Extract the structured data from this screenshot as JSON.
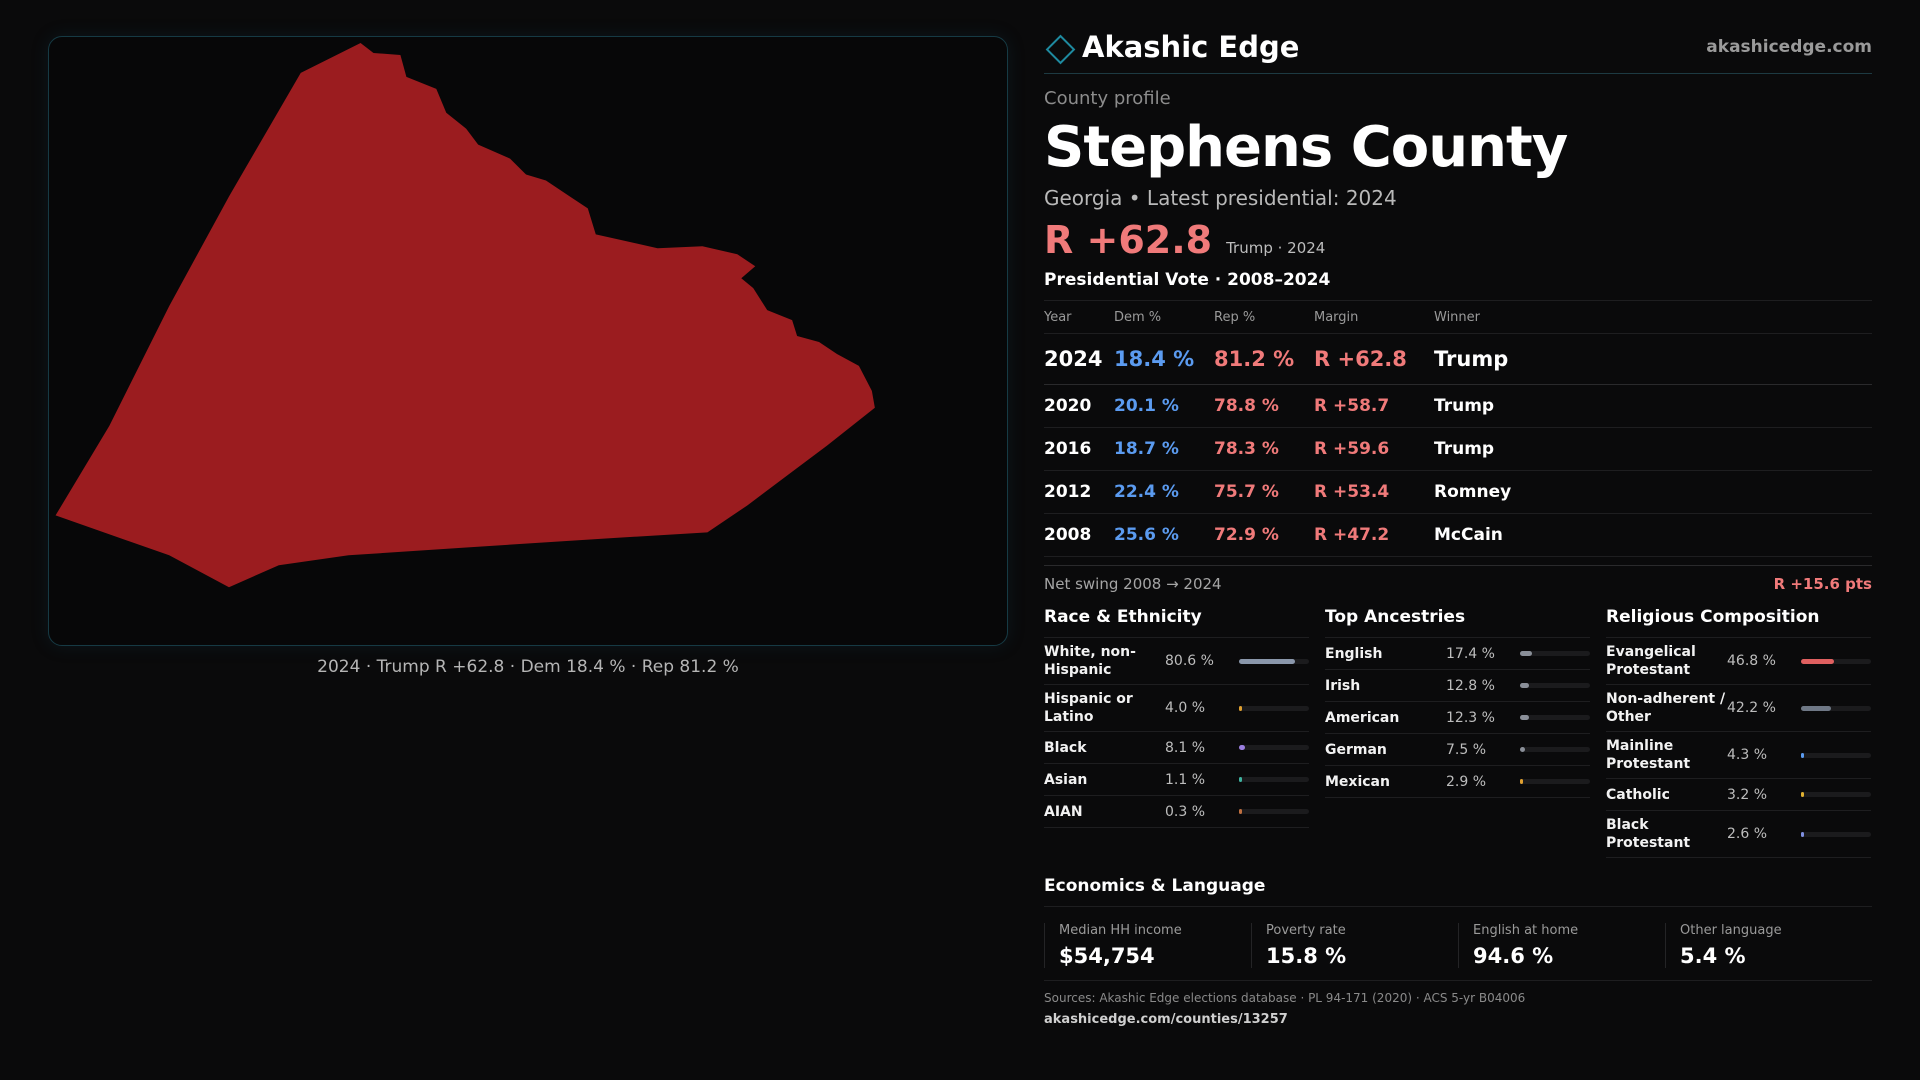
{
  "map": {
    "caption": "2024 · Trump R +62.8 · Dem 18.4 % · Rep 81.2 %",
    "fill_color": "#9b1c1f"
  },
  "brand": {
    "name": "Akashic Edge",
    "url": "akashicedge.com",
    "logo_icon": "diamond-outline-icon"
  },
  "profile": {
    "eyebrow": "County profile",
    "title": "Stephens County",
    "subline": "Georgia • Latest presidential: 2024",
    "margin": "R +62.8",
    "margin_note": "Trump · 2024"
  },
  "votes": {
    "heading": "Presidential Vote · 2008–2024",
    "columns": [
      "Year",
      "Dem %",
      "Rep %",
      "Margin",
      "Winner"
    ],
    "rows": [
      {
        "year": "2024",
        "dem": "18.4 %",
        "rep": "81.2 %",
        "margin": "R +62.8",
        "winner": "Trump"
      },
      {
        "year": "2020",
        "dem": "20.1 %",
        "rep": "78.8 %",
        "margin": "R +58.7",
        "winner": "Trump"
      },
      {
        "year": "2016",
        "dem": "18.7 %",
        "rep": "78.3 %",
        "margin": "R +59.6",
        "winner": "Trump"
      },
      {
        "year": "2012",
        "dem": "22.4 %",
        "rep": "75.7 %",
        "margin": "R +53.4",
        "winner": "Romney"
      },
      {
        "year": "2008",
        "dem": "25.6 %",
        "rep": "72.9 %",
        "margin": "R +47.2",
        "winner": "McCain"
      }
    ],
    "swing_label": "Net swing 2008 → 2024",
    "swing_value": "R +15.6 pts"
  },
  "race": {
    "heading": "Race & Ethnicity",
    "items": [
      {
        "label": "White, non-Hispanic",
        "value": "80.6 %",
        "fraction": 0.806,
        "color": "#8a97ab"
      },
      {
        "label": "Hispanic or Latino",
        "value": "4.0 %",
        "fraction": 0.04,
        "color": "#e0a030"
      },
      {
        "label": "Black",
        "value": "8.1 %",
        "fraction": 0.081,
        "color": "#9b7fe0"
      },
      {
        "label": "Asian",
        "value": "1.1 %",
        "fraction": 0.011,
        "color": "#3fb3a0"
      },
      {
        "label": "AIAN",
        "value": "0.3 %",
        "fraction": 0.003,
        "color": "#c07040"
      }
    ]
  },
  "ancestry": {
    "heading": "Top Ancestries",
    "items": [
      {
        "label": "English",
        "value": "17.4 %",
        "fraction": 0.174,
        "color": "#8a8f98"
      },
      {
        "label": "Irish",
        "value": "12.8 %",
        "fraction": 0.128,
        "color": "#8a8f98"
      },
      {
        "label": "American",
        "value": "12.3 %",
        "fraction": 0.123,
        "color": "#8a8f98"
      },
      {
        "label": "German",
        "value": "7.5 %",
        "fraction": 0.075,
        "color": "#8a8f98"
      },
      {
        "label": "Mexican",
        "value": "2.9 %",
        "fraction": 0.029,
        "color": "#e0a030"
      }
    ]
  },
  "religion": {
    "heading": "Religious Composition",
    "items": [
      {
        "label": "Evangelical Protestant",
        "value": "46.8 %",
        "fraction": 0.468,
        "color": "#e06060"
      },
      {
        "label": "Non-adherent / Other",
        "value": "42.2 %",
        "fraction": 0.422,
        "color": "#6f7886"
      },
      {
        "label": "Mainline Protestant",
        "value": "4.3 %",
        "fraction": 0.043,
        "color": "#5b9bf0"
      },
      {
        "label": "Catholic",
        "value": "3.2 %",
        "fraction": 0.032,
        "color": "#e0b030"
      },
      {
        "label": "Black Protestant",
        "value": "2.6 %",
        "fraction": 0.026,
        "color": "#7f8fe0"
      }
    ]
  },
  "economics": {
    "heading": "Economics & Language",
    "cards": [
      {
        "label": "Median HH income",
        "value": "$54,754"
      },
      {
        "label": "Poverty rate",
        "value": "15.8 %"
      },
      {
        "label": "English at home",
        "value": "94.6 %"
      },
      {
        "label": "Other language",
        "value": "5.4 %"
      }
    ]
  },
  "footer": {
    "sources": "Sources: Akashic Edge elections database · PL 94-171 (2020) · ACS 5-yr B04006",
    "url": "akashicedge.com/counties/13257"
  }
}
